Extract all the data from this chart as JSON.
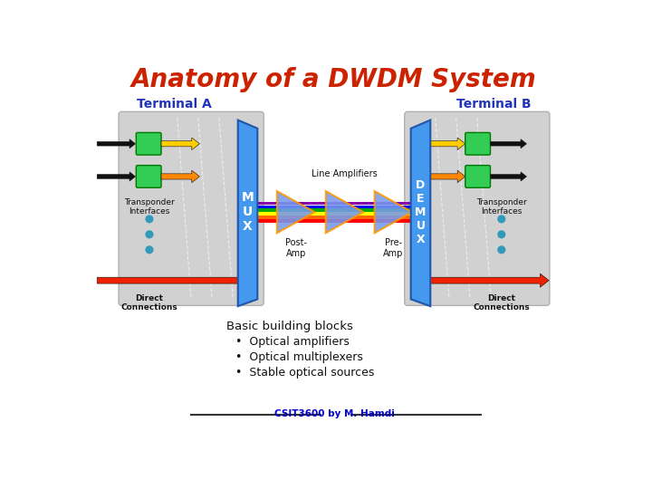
{
  "title": "Anatomy of a DWDM System",
  "title_color": "#CC2200",
  "title_fontsize": 20,
  "bg_color": "#FFFFFF",
  "terminal_a_label": "Terminal A",
  "terminal_b_label": "Terminal B",
  "terminal_label_color": "#2233BB",
  "terminal_label_fontsize": 10,
  "mux_label": "M\nU\nX",
  "demux_label": "D\nE\nM\nU\nX",
  "mux_color": "#5599FF",
  "post_amp_label": "Post-\nAmp",
  "line_amp_label": "Line Amplifiers",
  "pre_amp_label": "Pre-\nAmp",
  "transponder_label": "Transponder\nInterfaces",
  "direct_label": "Direct\nConnections",
  "bullet_header": "Basic building blocks",
  "bullet_items": [
    "Optical amplifiers",
    "Optical multiplexers",
    "Stable optical sources"
  ],
  "footer_text": "CSIT3600 by M. Hamdi",
  "arrow_yellow_color": "#FFCC00",
  "arrow_orange_color": "#FF8800",
  "arrow_red_color": "#EE2200",
  "rainbow_colors": [
    "#8800AA",
    "#0000FF",
    "#00AA00",
    "#FFFF00",
    "#FF6600",
    "#FF0000"
  ],
  "amp_fill_top": "#AABBFF",
  "amp_fill_bot": "#5577DD",
  "amp_edge": "#FF9900"
}
